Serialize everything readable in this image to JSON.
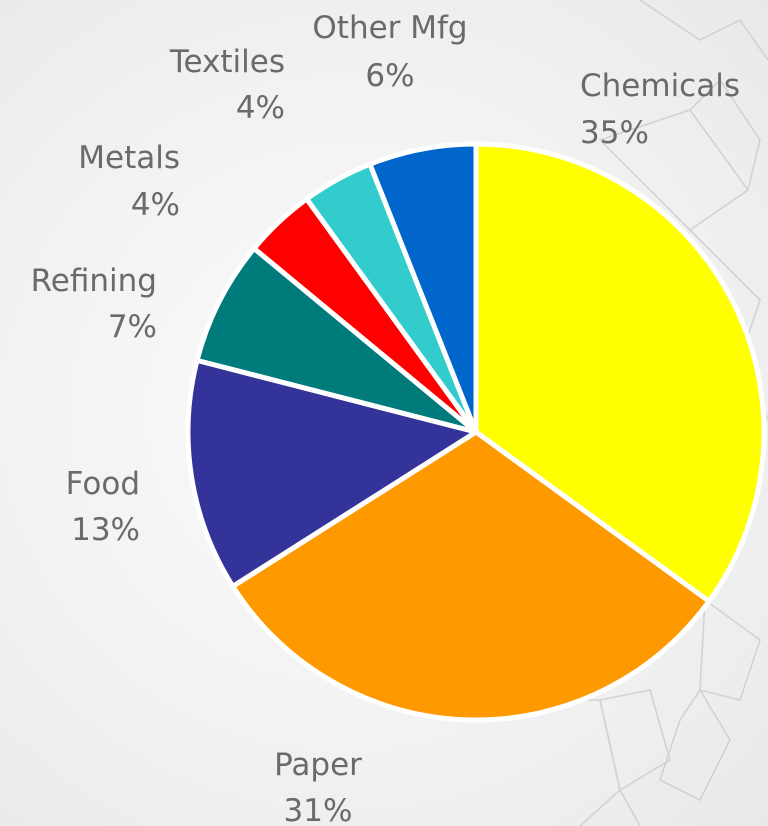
{
  "chart_data": {
    "type": "pie",
    "title": "",
    "start_angle_deg": 0,
    "direction": "clockwise",
    "slices": [
      {
        "label": "Chemicals",
        "value": 35,
        "value_label": "35%",
        "color": "#FFFF00"
      },
      {
        "label": "Paper",
        "value": 31,
        "value_label": "31%",
        "color": "#FF9900"
      },
      {
        "label": "Food",
        "value": 13,
        "value_label": "13%",
        "color": "#333399"
      },
      {
        "label": "Refining",
        "value": 7,
        "value_label": "7%",
        "color": "#007B7B"
      },
      {
        "label": "Metals",
        "value": 4,
        "value_label": "4%",
        "color": "#FF0000"
      },
      {
        "label": "Textiles",
        "value": 4,
        "value_label": "4%",
        "color": "#33CCCC"
      },
      {
        "label": "Other Mfg",
        "value": 6,
        "value_label": "6%",
        "color": "#0066CC"
      }
    ],
    "slice_border_color": "#FFFFFF",
    "label_color": "#6A6A6A"
  }
}
